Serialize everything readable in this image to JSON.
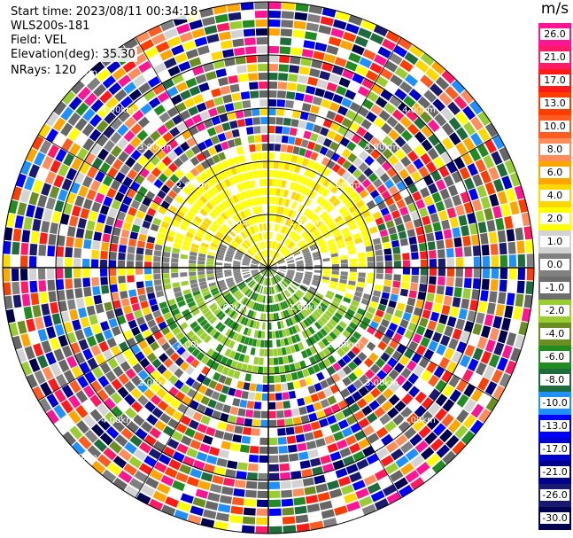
{
  "info": {
    "start_time": "Start time: 2023/08/11 00:34:18",
    "site": "WLS200s-181",
    "field": "Field: VEL",
    "elevation": "Elevation(deg): 35.30",
    "nrays": "NRays: 120"
  },
  "range_rings_km": [
    "1.00km",
    "1.00km",
    "1.00km",
    "1.00km",
    "2.00km",
    "2.00km",
    "2.00km",
    "2.00km",
    "3.00km",
    "3.00km",
    "3.00km",
    "3.00km",
    "4.00km",
    "4.00km",
    "4.00km",
    "4.00km",
    "5.00km",
    "5.00km"
  ],
  "colorbar": {
    "unit": "m/s",
    "labels": [
      "26.0",
      "21.0",
      "17.0",
      "13.0",
      "10.0",
      "8.0",
      "6.0",
      "4.0",
      "2.0",
      "1.0",
      "0.0",
      "-1.0",
      "-2.0",
      "-4.0",
      "-6.0",
      "-8.0",
      "-10.0",
      "-13.0",
      "-17.0",
      "-21.0",
      "-26.0",
      "-30.0"
    ],
    "colors": [
      "#ff1493",
      "#ff1a66",
      "#ff1a1a",
      "#ff3d00",
      "#ff5a1f",
      "#ff8c5a",
      "#ffa500",
      "#ffd700",
      "#ffff00",
      "#d3d3d3",
      "#808080",
      "#6e6e6e",
      "#9acd32",
      "#6b8e23",
      "#228b22",
      "#1e6b3c",
      "#1e90ff",
      "#0000ff",
      "#0000cd",
      "#00008b",
      "#191970",
      "#000050"
    ]
  }
}
